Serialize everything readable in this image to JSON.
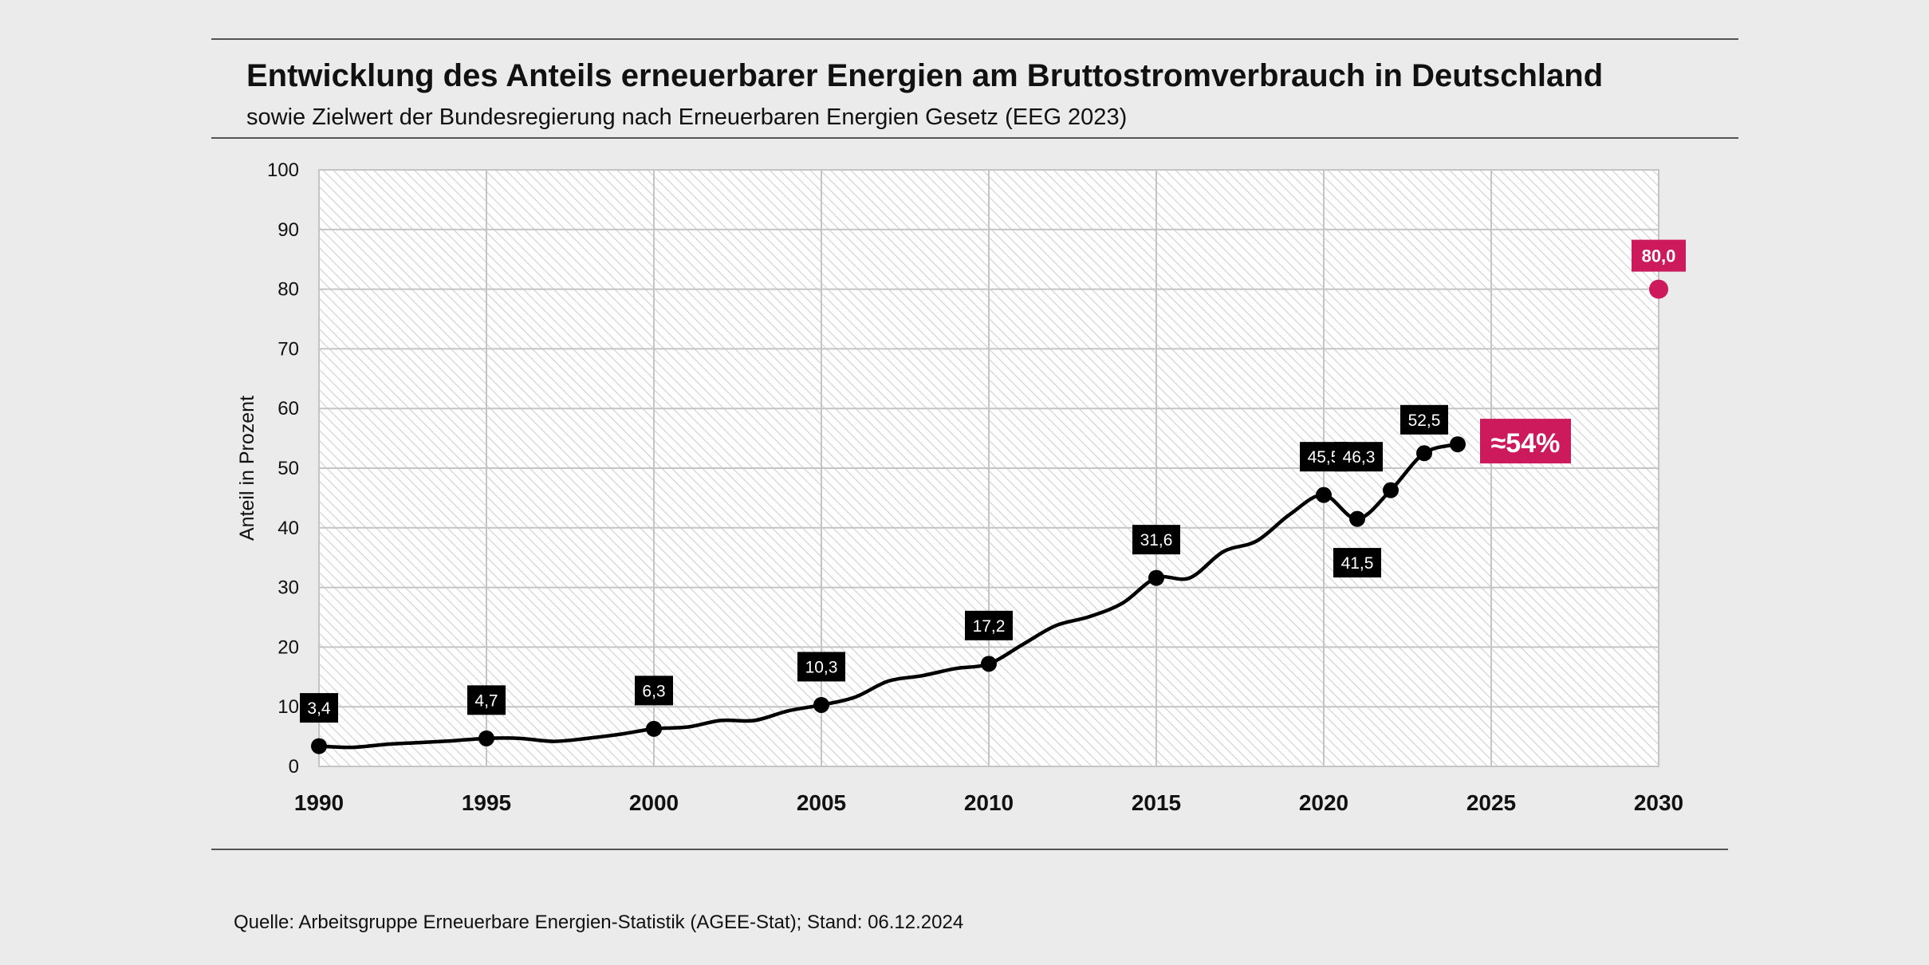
{
  "chart_data": {
    "type": "line",
    "title": "Entwicklung des Anteils erneuerbarer Energien am Bruttostromverbrauch  in Deutschland",
    "subtitle": "sowie Zielwert der Bundesregierung nach Erneuerbaren Energien Gesetz (EEG 2023)",
    "xlabel": "",
    "ylabel": "Anteil in Prozent",
    "xlim": [
      1990,
      2030
    ],
    "ylim": [
      0,
      100
    ],
    "x_ticks": [
      "1990",
      "1995",
      "2000",
      "2005",
      "2010",
      "2015",
      "2020",
      "2025",
      "2030"
    ],
    "y_ticks": [
      "0",
      "10",
      "20",
      "30",
      "40",
      "50",
      "60",
      "70",
      "80",
      "90",
      "100"
    ],
    "grid": true,
    "series": [
      {
        "x": [
          1990,
          1991,
          1992,
          1993,
          1994,
          1995,
          1996,
          1997,
          1998,
          1999,
          2000,
          2001,
          2002,
          2003,
          2004,
          2005,
          2006,
          2007,
          2008,
          2009,
          2010,
          2011,
          2012,
          2013,
          2014,
          2015,
          2016,
          2017,
          2018,
          2019,
          2020,
          2021,
          2022,
          2023,
          2024
        ],
        "y": [
          3.4,
          3.2,
          3.7,
          4.0,
          4.3,
          4.7,
          4.7,
          4.2,
          4.7,
          5.4,
          6.3,
          6.6,
          7.7,
          7.7,
          9.3,
          10.3,
          11.6,
          14.3,
          15.2,
          16.4,
          17.2,
          20.4,
          23.6,
          25.1,
          27.4,
          31.6,
          31.6,
          36.0,
          37.8,
          42.3,
          45.5,
          41.5,
          46.3,
          52.5,
          54.0
        ],
        "color": "#000000"
      }
    ],
    "data_labels": [
      {
        "x": 1990,
        "text": "3,4"
      },
      {
        "x": 1995,
        "text": "4,7"
      },
      {
        "x": 2000,
        "text": "6,3"
      },
      {
        "x": 2005,
        "text": "10,3"
      },
      {
        "x": 2010,
        "text": "17,2"
      },
      {
        "x": 2015,
        "text": "31,6"
      },
      {
        "x": 2020,
        "text": "45,5"
      },
      {
        "x": 2021,
        "text": "41,5"
      },
      {
        "x": 2022,
        "text": "46,3"
      },
      {
        "x": 2023,
        "text": "52,5"
      }
    ],
    "marker_years": [
      1990,
      1995,
      2000,
      2005,
      2010,
      2015,
      2020,
      2021,
      2022,
      2023,
      2024
    ],
    "estimate_label": {
      "x": 2024,
      "y": 54,
      "text": "≈54%"
    },
    "target": {
      "x": 2030,
      "y": 80.0,
      "text": "80,0",
      "color": "#cc1a5c"
    },
    "source": "Quelle: Arbeitsgruppe Erneuerbare Energien-Statistik (AGEE-Stat); Stand: 06.12.2024"
  }
}
